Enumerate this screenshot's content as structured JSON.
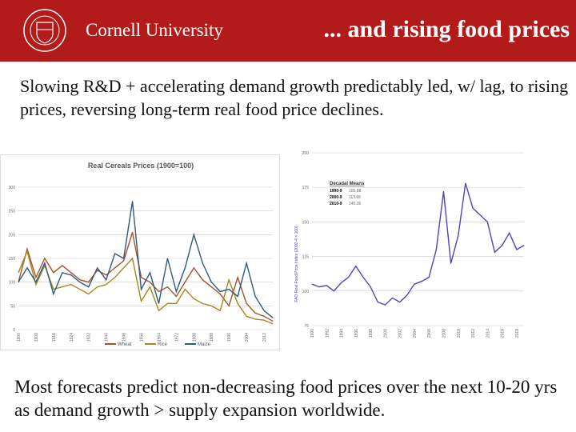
{
  "header": {
    "university": "Cornell University",
    "title": "... and rising food prices",
    "seal_text": "CORNELL UNIVERSITY FOUNDED A.D. 1865",
    "brand_color": "#b31b1b"
  },
  "body": {
    "paragraph1": "Slowing R&D + accelerating demand growth predictably led, w/ lag, to rising prices, reversing long-term real food price declines.",
    "paragraph2": "Most forecasts predict non-decreasing food prices over the next 10-20 yrs as demand growth > supply expansion worldwide."
  },
  "chart_data": [
    {
      "type": "line",
      "title": "Real Cereals Prices (1900=100)",
      "ylim": [
        0,
        300
      ],
      "yticks": [
        0,
        50,
        100,
        150,
        200,
        250,
        300
      ],
      "xlim": [
        1900,
        2016
      ],
      "grid": "horizontal",
      "legend": "bottom",
      "x": [
        1900,
        1904,
        1908,
        1912,
        1916,
        1920,
        1924,
        1928,
        1932,
        1936,
        1940,
        1944,
        1948,
        1952,
        1956,
        1960,
        1964,
        1968,
        1972,
        1976,
        1980,
        1984,
        1988,
        1992,
        1996,
        2000,
        2004,
        2008,
        2012,
        2016
      ],
      "series": [
        {
          "name": "Wheat",
          "color": "#a5522a",
          "values": [
            100,
            170,
            110,
            150,
            120,
            135,
            120,
            105,
            100,
            125,
            115,
            130,
            145,
            205,
            110,
            100,
            80,
            90,
            70,
            100,
            130,
            105,
            90,
            75,
            50,
            110,
            55,
            35,
            28,
            18
          ]
        },
        {
          "name": "Rice",
          "color": "#a08a1a",
          "values": [
            120,
            165,
            95,
            135,
            85,
            90,
            95,
            85,
            75,
            90,
            95,
            110,
            130,
            150,
            60,
            90,
            40,
            55,
            55,
            85,
            65,
            55,
            50,
            40,
            105,
            55,
            28,
            22,
            20,
            12
          ]
        },
        {
          "name": "Maize",
          "color": "#2c5a80",
          "values": [
            100,
            130,
            100,
            140,
            75,
            120,
            115,
            100,
            90,
            130,
            105,
            160,
            150,
            270,
            85,
            120,
            55,
            150,
            80,
            130,
            200,
            140,
            100,
            80,
            85,
            70,
            140,
            70,
            40,
            25
          ]
        }
      ]
    },
    {
      "type": "line",
      "ylabel": "FAO Real Food Price Index (2002-4 = 100)",
      "ylim": [
        75,
        200
      ],
      "yticks": [
        75,
        100,
        125,
        150,
        175,
        200
      ],
      "xlim": [
        1990,
        2019
      ],
      "grid": "horizontal",
      "x": [
        1990,
        1991,
        1992,
        1993,
        1994,
        1995,
        1996,
        1997,
        1998,
        1999,
        2000,
        2001,
        2002,
        2003,
        2004,
        2005,
        2006,
        2007,
        2008,
        2009,
        2010,
        2011,
        2012,
        2013,
        2014,
        2015,
        2016,
        2017,
        2018,
        2019
      ],
      "series": [
        {
          "color": "#4b45c0",
          "values": [
            105,
            103,
            104,
            100,
            106,
            110,
            118,
            110,
            103,
            92,
            90,
            95,
            92,
            97,
            105,
            107,
            110,
            130,
            172,
            120,
            140,
            178,
            160,
            155,
            150,
            128,
            133,
            142,
            130,
            133
          ]
        }
      ],
      "legend_title": "Decadal Means",
      "legend_rows": [
        {
          "decade": "1990-9",
          "mean": "105.88"
        },
        {
          "decade": "2000-9",
          "mean": "113.66"
        },
        {
          "decade": "2010-9",
          "mean": "145.36"
        }
      ]
    }
  ]
}
